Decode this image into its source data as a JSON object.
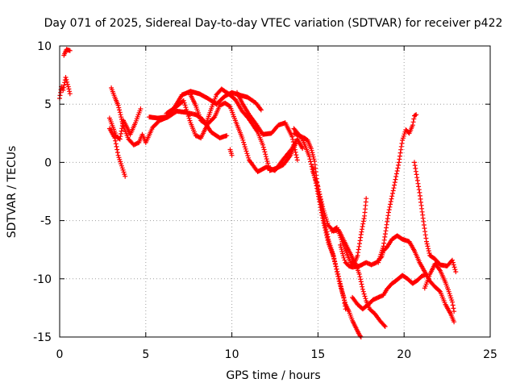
{
  "chart_data": {
    "type": "scatter",
    "title": "Day 071 of 2025, Sidereal Day-to-day VTEC variation (SDTVAR) for receiver p422",
    "xlabel": "GPS time / hours",
    "ylabel": "SDTVAR / TECUs",
    "xlim": [
      0,
      25
    ],
    "ylim": [
      -15,
      10
    ],
    "xticks": [
      "0",
      "5",
      "10",
      "15",
      "20",
      "25"
    ],
    "yticks": [
      "-15",
      "-10",
      "-5",
      "0",
      "5",
      "10"
    ],
    "grid": true,
    "marker": "+",
    "color": "#ff0000",
    "tracks": [
      [
        [
          0.0,
          5.5
        ],
        [
          0.1,
          6.5
        ],
        [
          0.2,
          6.2
        ],
        [
          0.35,
          7.3
        ],
        [
          0.5,
          6.5
        ],
        [
          0.6,
          5.9
        ]
      ],
      [
        [
          0.25,
          9.2
        ],
        [
          0.4,
          9.7
        ],
        [
          0.6,
          9.6
        ]
      ],
      [
        [
          2.9,
          3.8
        ],
        [
          3.1,
          3.0
        ],
        [
          3.3,
          2.2
        ],
        [
          3.5,
          2.0
        ],
        [
          3.7,
          3.6
        ],
        [
          3.85,
          3.2
        ],
        [
          4.1,
          2.4
        ],
        [
          4.4,
          3.4
        ],
        [
          4.7,
          4.6
        ]
      ],
      [
        [
          2.9,
          2.9
        ],
        [
          3.2,
          2.1
        ],
        [
          3.4,
          0.6
        ],
        [
          3.6,
          -0.3
        ],
        [
          3.8,
          -1.2
        ]
      ],
      [
        [
          3.0,
          6.4
        ],
        [
          3.2,
          5.6
        ],
        [
          3.4,
          4.9
        ],
        [
          3.7,
          3.1
        ],
        [
          4.0,
          2.0
        ],
        [
          4.3,
          1.5
        ],
        [
          4.6,
          1.7
        ],
        [
          4.8,
          2.4
        ],
        [
          5.0,
          1.7
        ],
        [
          5.4,
          3.0
        ],
        [
          5.8,
          3.6
        ],
        [
          6.3,
          3.9
        ],
        [
          6.8,
          4.4
        ],
        [
          7.3,
          4.3
        ],
        [
          7.9,
          4.1
        ],
        [
          8.3,
          3.7
        ],
        [
          8.8,
          2.6
        ],
        [
          9.3,
          2.1
        ],
        [
          9.7,
          2.3
        ]
      ],
      [
        [
          5.2,
          3.9
        ],
        [
          5.7,
          3.8
        ],
        [
          6.2,
          3.9
        ],
        [
          6.7,
          4.8
        ],
        [
          7.1,
          5.8
        ],
        [
          7.6,
          6.1
        ],
        [
          8.1,
          5.9
        ],
        [
          8.6,
          5.5
        ],
        [
          9.1,
          5.0
        ],
        [
          9.6,
          5.7
        ],
        [
          10.0,
          6.0
        ],
        [
          10.4,
          5.8
        ],
        [
          10.9,
          5.6
        ],
        [
          11.4,
          5.1
        ],
        [
          11.7,
          4.5
        ]
      ],
      [
        [
          6.2,
          4.2
        ],
        [
          6.7,
          4.7
        ],
        [
          7.2,
          5.3
        ],
        [
          7.6,
          3.4
        ],
        [
          7.9,
          2.3
        ],
        [
          8.2,
          2.1
        ],
        [
          8.6,
          3.3
        ],
        [
          9.0,
          3.9
        ],
        [
          9.3,
          4.9
        ],
        [
          9.6,
          5.1
        ],
        [
          9.9,
          4.8
        ],
        [
          10.2,
          3.6
        ],
        [
          10.6,
          2.1
        ],
        [
          11.0,
          0.2
        ],
        [
          11.5,
          -0.8
        ],
        [
          12.0,
          -0.4
        ],
        [
          12.5,
          -0.7
        ],
        [
          13.0,
          0.3
        ],
        [
          13.5,
          1.2
        ],
        [
          13.8,
          2.0
        ],
        [
          14.1,
          1.2
        ]
      ],
      [
        [
          7.6,
          5.8
        ],
        [
          7.9,
          4.9
        ],
        [
          8.2,
          3.6
        ],
        [
          8.5,
          3.3
        ],
        [
          8.8,
          4.6
        ],
        [
          9.1,
          5.8
        ],
        [
          9.4,
          6.3
        ],
        [
          9.8,
          5.9
        ],
        [
          10.2,
          5.4
        ],
        [
          10.6,
          4.4
        ],
        [
          11.0,
          3.7
        ],
        [
          11.5,
          2.6
        ],
        [
          11.8,
          1.5
        ],
        [
          12.2,
          -0.7
        ],
        [
          12.6,
          -0.5
        ],
        [
          13.0,
          -0.2
        ],
        [
          13.4,
          0.6
        ],
        [
          13.7,
          1.6
        ]
      ],
      [
        [
          9.9,
          1.1
        ],
        [
          10.0,
          0.6
        ]
      ],
      [
        [
          10.3,
          6.0
        ],
        [
          10.6,
          5.1
        ],
        [
          11.0,
          4.1
        ],
        [
          11.4,
          3.3
        ],
        [
          11.8,
          2.4
        ],
        [
          12.3,
          2.5
        ],
        [
          12.7,
          3.2
        ],
        [
          13.1,
          3.4
        ],
        [
          13.5,
          2.2
        ],
        [
          13.8,
          0.2
        ]
      ],
      [
        [
          13.6,
          2.5
        ],
        [
          13.9,
          2.3
        ],
        [
          14.2,
          2.1
        ],
        [
          14.4,
          1.9
        ],
        [
          14.6,
          1.2
        ],
        [
          14.8,
          0.1
        ],
        [
          15.0,
          -2.3
        ],
        [
          15.2,
          -3.7
        ],
        [
          15.4,
          -5.3
        ],
        [
          15.6,
          -6.6
        ],
        [
          15.9,
          -8.0
        ],
        [
          16.1,
          -9.4
        ],
        [
          16.3,
          -10.6
        ],
        [
          16.5,
          -11.6
        ],
        [
          16.6,
          -12.6
        ]
      ],
      [
        [
          13.6,
          2.9
        ],
        [
          14.1,
          2.0
        ],
        [
          14.5,
          0.5
        ],
        [
          14.7,
          -0.8
        ],
        [
          15.0,
          -2.1
        ],
        [
          15.3,
          -4.0
        ],
        [
          15.6,
          -5.4
        ],
        [
          15.9,
          -5.9
        ],
        [
          16.2,
          -5.8
        ],
        [
          16.6,
          -7.0
        ],
        [
          16.9,
          -7.9
        ],
        [
          17.2,
          -8.8
        ],
        [
          17.4,
          -9.6
        ],
        [
          17.6,
          -10.9
        ],
        [
          17.8,
          -11.9
        ],
        [
          18.0,
          -12.6
        ],
        [
          18.3,
          -13.0
        ],
        [
          18.6,
          -13.6
        ],
        [
          18.9,
          -14.1
        ]
      ],
      [
        [
          14.7,
          -0.4
        ],
        [
          15.0,
          -2.7
        ],
        [
          15.3,
          -5.0
        ],
        [
          15.6,
          -6.9
        ],
        [
          15.9,
          -8.1
        ],
        [
          16.2,
          -9.8
        ],
        [
          16.4,
          -11.1
        ],
        [
          16.6,
          -12.2
        ],
        [
          16.8,
          -12.8
        ],
        [
          17.0,
          -13.6
        ],
        [
          17.2,
          -14.2
        ],
        [
          17.4,
          -14.8
        ],
        [
          17.5,
          -15.0
        ]
      ],
      [
        [
          15.8,
          -5.9
        ],
        [
          16.1,
          -5.6
        ],
        [
          16.4,
          -6.8
        ],
        [
          16.7,
          -7.9
        ],
        [
          16.9,
          -8.6
        ],
        [
          17.1,
          -8.7
        ],
        [
          17.3,
          -8.0
        ],
        [
          17.5,
          -6.2
        ],
        [
          17.7,
          -4.6
        ],
        [
          17.8,
          -3.1
        ]
      ],
      [
        [
          16.3,
          -7.1
        ],
        [
          16.5,
          -8.2
        ],
        [
          16.6,
          -8.6
        ],
        [
          16.8,
          -8.9
        ],
        [
          17.0,
          -9.0
        ],
        [
          17.4,
          -8.9
        ],
        [
          17.8,
          -8.6
        ],
        [
          18.1,
          -8.8
        ],
        [
          18.4,
          -8.6
        ],
        [
          18.7,
          -8.1
        ],
        [
          18.8,
          -7.6
        ],
        [
          19.0,
          -7.3
        ],
        [
          19.3,
          -6.6
        ],
        [
          19.6,
          -6.3
        ],
        [
          19.9,
          -6.6
        ],
        [
          20.3,
          -6.8
        ],
        [
          20.6,
          -7.6
        ],
        [
          20.9,
          -8.6
        ],
        [
          21.2,
          -9.4
        ],
        [
          21.5,
          -10.2
        ],
        [
          21.8,
          -10.7
        ],
        [
          22.1,
          -11.1
        ],
        [
          22.4,
          -12.2
        ],
        [
          22.7,
          -13.0
        ],
        [
          22.9,
          -13.7
        ]
      ],
      [
        [
          17.0,
          -11.6
        ],
        [
          17.3,
          -12.2
        ],
        [
          17.6,
          -12.6
        ],
        [
          18.0,
          -12.1
        ],
        [
          18.2,
          -11.8
        ],
        [
          18.5,
          -11.6
        ],
        [
          18.8,
          -11.4
        ],
        [
          19.0,
          -10.9
        ],
        [
          19.3,
          -10.4
        ],
        [
          19.5,
          -10.2
        ],
        [
          19.9,
          -9.7
        ],
        [
          20.2,
          -10.0
        ],
        [
          20.5,
          -10.4
        ],
        [
          20.8,
          -10.1
        ],
        [
          21.0,
          -9.8
        ],
        [
          21.3,
          -9.6
        ]
      ],
      [
        [
          18.5,
          -8.6
        ],
        [
          18.8,
          -7.2
        ],
        [
          19.1,
          -4.3
        ],
        [
          19.4,
          -2.2
        ],
        [
          19.7,
          0.0
        ],
        [
          19.9,
          1.9
        ],
        [
          20.1,
          2.8
        ],
        [
          20.3,
          2.5
        ],
        [
          20.5,
          3.2
        ],
        [
          20.6,
          4.0
        ],
        [
          20.7,
          4.1
        ]
      ],
      [
        [
          20.6,
          0.0
        ],
        [
          20.9,
          -2.6
        ],
        [
          21.1,
          -4.8
        ],
        [
          21.3,
          -6.8
        ],
        [
          21.5,
          -8.0
        ],
        [
          21.8,
          -8.3
        ],
        [
          22.1,
          -8.8
        ],
        [
          22.5,
          -8.9
        ],
        [
          22.8,
          -8.4
        ],
        [
          23.0,
          -9.4
        ]
      ],
      [
        [
          21.2,
          -10.8
        ],
        [
          21.5,
          -9.6
        ],
        [
          21.8,
          -8.7
        ],
        [
          22.1,
          -9.3
        ],
        [
          22.4,
          -10.3
        ],
        [
          22.6,
          -11.1
        ],
        [
          22.8,
          -12.0
        ],
        [
          22.9,
          -12.8
        ]
      ]
    ]
  }
}
